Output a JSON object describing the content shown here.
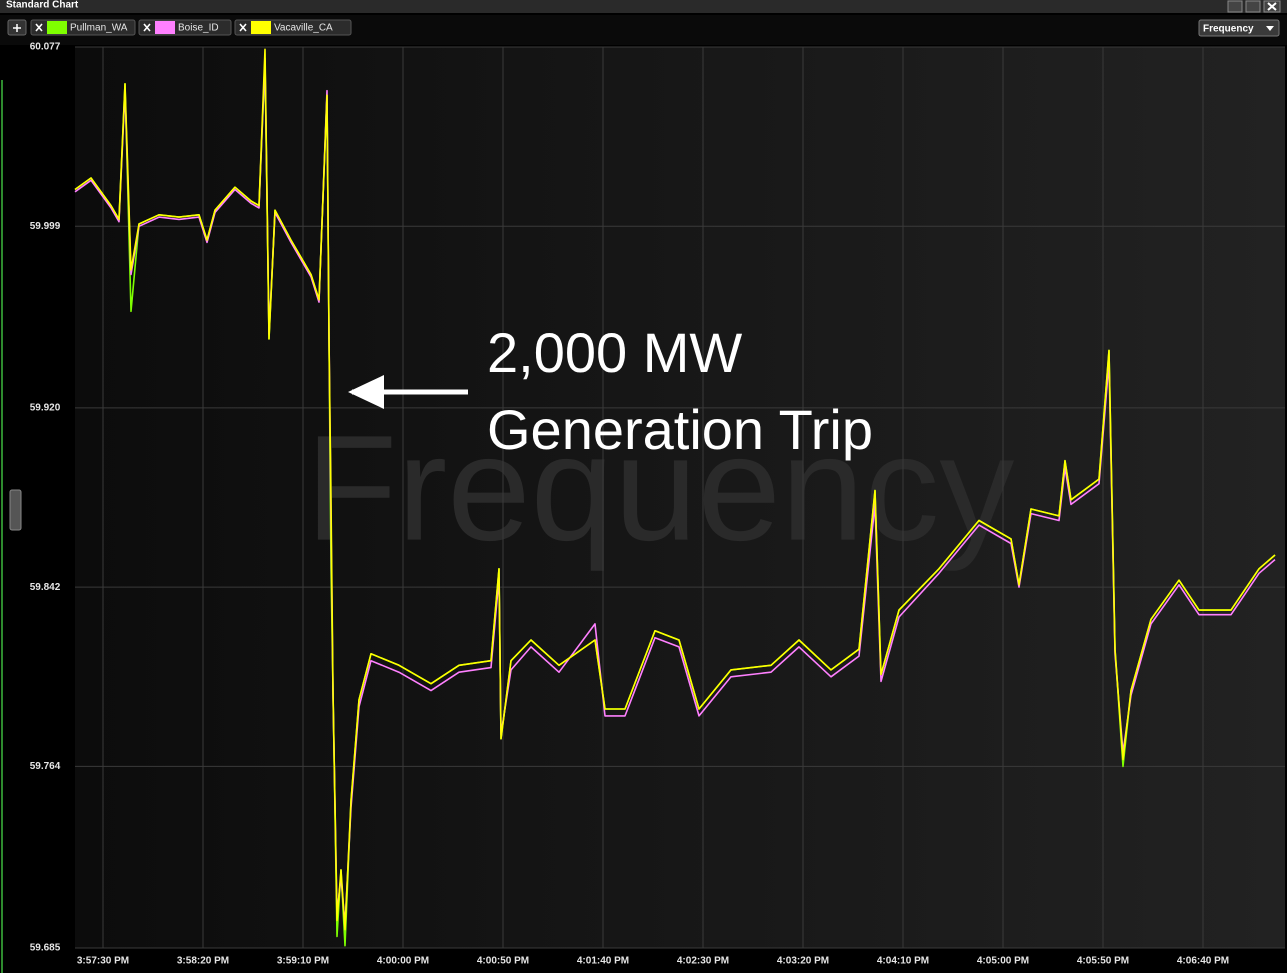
{
  "ui": {
    "window_title": "Standard Chart",
    "dropdown": "Frequency",
    "watermark": "Frequency"
  },
  "chart_data": {
    "type": "line",
    "annotations": [
      "2,000 MW",
      "Generation Trip"
    ],
    "x": [
      "3:57:16 PM",
      "3:57:24 PM",
      "3:57:34 PM",
      "3:57:38 PM",
      "3:57:41 PM",
      "3:57:44 PM",
      "3:57:48 PM",
      "3:57:58 PM",
      "3:58:08 PM",
      "3:58:18 PM",
      "3:58:22 PM",
      "3:58:26 PM",
      "3:58:36 PM",
      "3:58:44 PM",
      "3:58:48 PM",
      "3:58:51 PM",
      "3:58:53 PM",
      "3:58:56 PM",
      "3:59:04 PM",
      "3:59:14 PM",
      "3:59:18 PM",
      "3:59:22 PM",
      "3:59:23 PM",
      "3:59:24 PM",
      "3:59:25 PM",
      "3:59:27 PM",
      "3:59:29 PM",
      "3:59:31 PM",
      "3:59:34 PM",
      "3:59:38 PM",
      "3:59:44 PM",
      "3:59:58 PM",
      "4:00:14 PM",
      "4:00:28 PM",
      "4:00:44 PM",
      "4:00:48 PM",
      "4:00:49 PM",
      "4:00:54 PM",
      "4:01:04 PM",
      "4:01:18 PM",
      "4:01:36 PM",
      "4:01:41 PM",
      "4:01:51 PM",
      "4:02:06 PM",
      "4:02:18 PM",
      "4:02:28 PM",
      "4:02:44 PM",
      "4:03:04 PM",
      "4:03:18 PM",
      "4:03:34 PM",
      "4:03:48 PM",
      "4:03:56 PM",
      "4:03:59 PM",
      "4:04:08 PM",
      "4:04:28 PM",
      "4:04:48 PM",
      "4:05:04 PM",
      "4:05:08 PM",
      "4:05:14 PM",
      "4:05:28 PM",
      "4:05:31 PM",
      "4:05:34 PM",
      "4:05:48 PM",
      "4:05:53 PM",
      "4:05:56 PM",
      "4:06:00 PM",
      "4:06:04 PM",
      "4:06:14 PM",
      "4:06:28 PM",
      "4:06:38 PM",
      "4:06:54 PM",
      "4:07:08 PM",
      "4:07:16 PM"
    ],
    "series": [
      {
        "name": "Pullman_WA",
        "color": "#7fff00",
        "values": [
          60.015,
          60.02,
          60.008,
          60.002,
          60.061,
          59.962,
          60.0,
          60.004,
          60.003,
          60.004,
          59.993,
          60.006,
          60.016,
          60.01,
          60.008,
          60.07,
          59.95,
          60.006,
          59.993,
          59.978,
          59.967,
          60.056,
          59.95,
          59.85,
          59.797,
          59.69,
          59.719,
          59.686,
          59.749,
          59.793,
          59.813,
          59.808,
          59.8,
          59.808,
          59.81,
          59.85,
          59.776,
          59.81,
          59.819,
          59.808,
          59.819,
          59.789,
          59.789,
          59.823,
          59.819,
          59.789,
          59.806,
          59.808,
          59.819,
          59.806,
          59.815,
          59.884,
          59.804,
          59.832,
          59.85,
          59.871,
          59.863,
          59.843,
          59.876,
          59.873,
          59.897,
          59.88,
          59.889,
          59.945,
          59.815,
          59.764,
          59.797,
          59.828,
          59.845,
          59.832,
          59.832,
          59.85,
          59.856
        ]
      },
      {
        "name": "Boise_ID",
        "color": "#ff80ff",
        "values": [
          60.014,
          60.019,
          60.007,
          60.001,
          60.058,
          59.978,
          59.999,
          60.003,
          60.002,
          60.003,
          59.992,
          60.005,
          60.015,
          60.009,
          60.007,
          60.072,
          59.952,
          60.005,
          59.992,
          59.977,
          59.966,
          60.058,
          59.952,
          59.87,
          59.795,
          59.7,
          59.716,
          59.695,
          59.746,
          59.79,
          59.81,
          59.805,
          59.797,
          59.805,
          59.807,
          59.846,
          59.778,
          59.806,
          59.816,
          59.805,
          59.826,
          59.786,
          59.786,
          59.82,
          59.816,
          59.786,
          59.803,
          59.805,
          59.816,
          59.803,
          59.812,
          59.878,
          59.801,
          59.829,
          59.848,
          59.869,
          59.861,
          59.842,
          59.874,
          59.871,
          59.894,
          59.878,
          59.887,
          59.94,
          59.813,
          59.77,
          59.795,
          59.826,
          59.843,
          59.83,
          59.83,
          59.848,
          59.854
        ]
      },
      {
        "name": "Vacaville_CA",
        "color": "#ffff00",
        "values": [
          60.015,
          60.02,
          60.008,
          60.002,
          60.061,
          59.98,
          60.0,
          60.004,
          60.003,
          60.004,
          59.993,
          60.006,
          60.016,
          60.01,
          60.008,
          60.076,
          59.95,
          60.006,
          59.993,
          59.978,
          59.967,
          60.056,
          59.95,
          59.88,
          59.797,
          59.697,
          59.719,
          59.693,
          59.749,
          59.793,
          59.813,
          59.808,
          59.8,
          59.808,
          59.81,
          59.85,
          59.776,
          59.81,
          59.819,
          59.808,
          59.819,
          59.789,
          59.789,
          59.823,
          59.819,
          59.789,
          59.806,
          59.808,
          59.819,
          59.806,
          59.815,
          59.884,
          59.804,
          59.832,
          59.85,
          59.871,
          59.863,
          59.843,
          59.876,
          59.873,
          59.897,
          59.88,
          59.889,
          59.945,
          59.815,
          59.767,
          59.797,
          59.828,
          59.845,
          59.832,
          59.832,
          59.85,
          59.856
        ]
      }
    ],
    "xlim": [
      "3:57:16 PM",
      "4:07:21 PM"
    ],
    "xticks": [
      "3:57:30 PM",
      "3:58:20 PM",
      "3:59:10 PM",
      "4:00:00 PM",
      "4:00:50 PM",
      "4:01:40 PM",
      "4:02:30 PM",
      "4:03:20 PM",
      "4:04:10 PM",
      "4:05:00 PM",
      "4:05:50 PM",
      "4:06:40 PM"
    ],
    "ylim": [
      59.685,
      60.077
    ],
    "yticks": [
      59.685,
      59.764,
      59.842,
      {
        "value": 59.92,
        "label": "59.920"
      },
      59.999,
      60.077
    ],
    "grid": true
  }
}
